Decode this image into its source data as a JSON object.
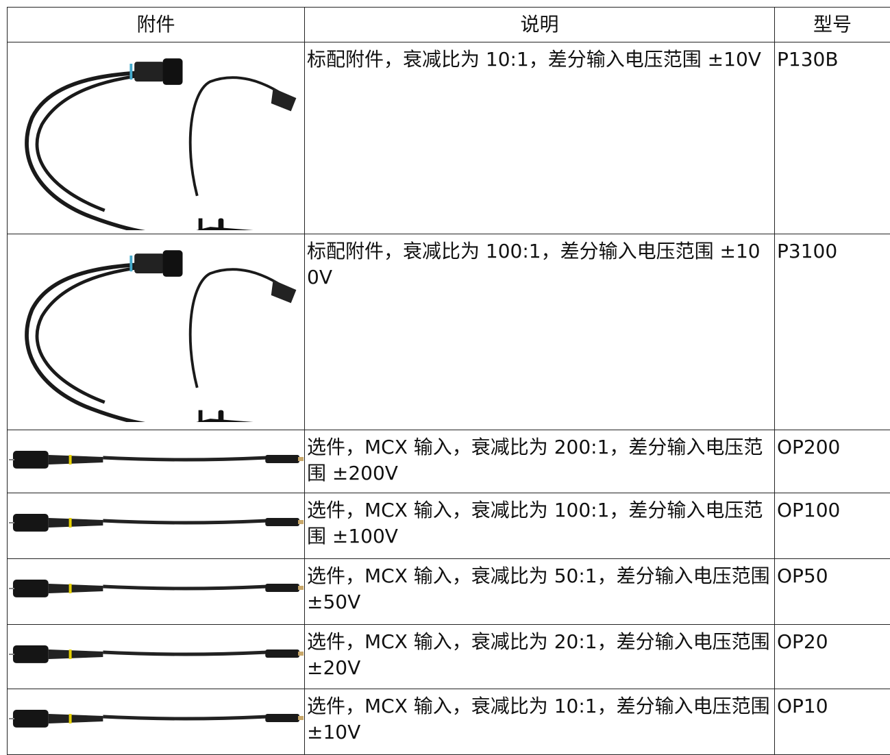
{
  "table": {
    "header": [
      "附件",
      "说明",
      "型号"
    ],
    "rows": [
      [
        "标配附件，衰减比为 10:1，差分输入电压范围 ±10V",
        "P130B"
      ],
      [
        "标配附件，衰减比为 100:1，差分输入电压范围 ±100V",
        "P3100"
      ],
      [
        "选件，MCX 输入，衰减比为 200:1，差分输入电压范围 ±200V",
        "OP200"
      ],
      [
        "选件，MCX 输入，衰减比为 100:1，差分输入电压范围 ±100V",
        "OP100"
      ],
      [
        "选件，MCX 输入，衰减比为 50:1，差分输入电压范围 ±50V",
        "OP50"
      ],
      [
        "选件，MCX 输入，衰减比为 20:1，差分输入电压范围 ±20V",
        "OP20"
      ],
      [
        "选件，MCX 输入，衰减比为 10:1，差分输入电压范围 ±10V",
        "OP10"
      ]
    ]
  }
}
